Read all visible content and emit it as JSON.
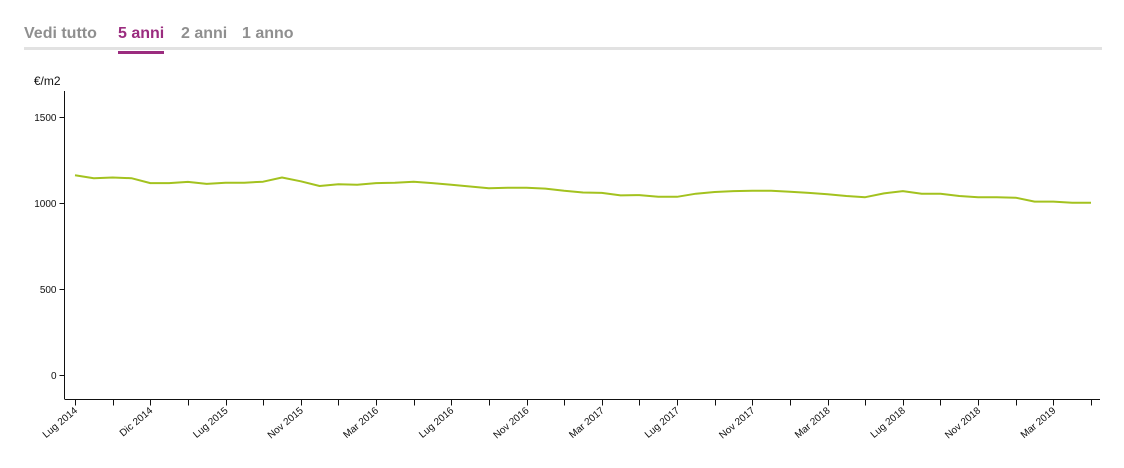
{
  "tabs": [
    {
      "label": "Vedi tutto",
      "active": false
    },
    {
      "label": "5 anni",
      "active": true
    },
    {
      "label": "2 anni",
      "active": false
    },
    {
      "label": "1 anno",
      "active": false
    }
  ],
  "colors": {
    "accent": "#9b2c7f",
    "line": "#a3c21f",
    "tab_inactive": "#8f8f8f",
    "axis": "#111111"
  },
  "chart_data": {
    "type": "line",
    "ylabel": "€/m2",
    "ylim": [
      -140,
      1650
    ],
    "yticks": [
      0,
      500,
      1000,
      1500
    ],
    "grid": false,
    "x_start": "2014-07",
    "xtick_labels": [
      {
        "index": 0,
        "label": "Lug 2014"
      },
      {
        "index": 4,
        "label": "Dic 2014"
      },
      {
        "index": 8,
        "label": "Lug 2015"
      },
      {
        "index": 12,
        "label": "Nov 2015"
      },
      {
        "index": 16,
        "label": "Mar 2016"
      },
      {
        "index": 20,
        "label": "Lug 2016"
      },
      {
        "index": 24,
        "label": "Nov 2016"
      },
      {
        "index": 28,
        "label": "Mar 2017"
      },
      {
        "index": 32,
        "label": "Lug 2017"
      },
      {
        "index": 36,
        "label": "Nov 2017"
      },
      {
        "index": 40,
        "label": "Mar 2018"
      },
      {
        "index": 44,
        "label": "Lug 2018"
      },
      {
        "index": 48,
        "label": "Nov 2018"
      },
      {
        "index": 52,
        "label": "Mar 2019"
      }
    ],
    "series": [
      {
        "name": "",
        "values": [
          1160,
          1143,
          1147,
          1143,
          1115,
          1115,
          1122,
          1110,
          1117,
          1117,
          1123,
          1147,
          1125,
          1098,
          1108,
          1105,
          1115,
          1117,
          1123,
          1115,
          1105,
          1095,
          1085,
          1088,
          1088,
          1083,
          1070,
          1060,
          1058,
          1043,
          1045,
          1035,
          1035,
          1053,
          1063,
          1068,
          1070,
          1070,
          1065,
          1058,
          1050,
          1040,
          1033,
          1055,
          1068,
          1053,
          1053,
          1040,
          1032,
          1033,
          1030,
          1007,
          1007,
          1000,
          1000
        ]
      }
    ]
  }
}
